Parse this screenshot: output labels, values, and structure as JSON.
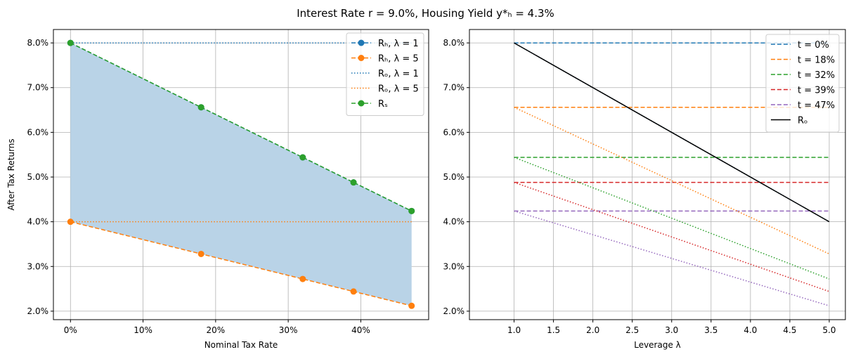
{
  "title": "Interest Rate r = 9.0%, Housing Yield y*ₕ = 4.3%",
  "chart_data": [
    {
      "type": "line",
      "xlabel": "Nominal Tax Rate",
      "ylabel": "After Tax Returns",
      "xlim": [
        -0.0235,
        0.4935
      ],
      "ylim": [
        1.81,
        8.3
      ],
      "xticks": [
        "0%",
        "10%",
        "20%",
        "30%",
        "40%"
      ],
      "xtick_values": [
        0,
        0.1,
        0.2,
        0.3,
        0.4
      ],
      "yticks": [
        "2.0%",
        "3.0%",
        "4.0%",
        "5.0%",
        "6.0%",
        "7.0%",
        "8.0%"
      ],
      "ytick_values": [
        2,
        3,
        4,
        5,
        6,
        7,
        8
      ],
      "grid": true,
      "legend_position": "top-right",
      "x": [
        0,
        0.18,
        0.32,
        0.39,
        0.47
      ],
      "fill_between": [
        "Rₕ, λ = 1",
        "Rₕ, λ = 5"
      ],
      "fill_color": "#b9d3e7",
      "series": [
        {
          "name": "Rₕ, λ = 1",
          "values": [
            8.0,
            6.56,
            5.44,
            4.88,
            4.24
          ],
          "color": "#1f77b4",
          "style": "dashed",
          "marker": true
        },
        {
          "name": "Rₕ, λ = 5",
          "values": [
            4.0,
            3.28,
            2.72,
            2.44,
            2.12
          ],
          "color": "#ff7f0e",
          "style": "dashed",
          "marker": true
        },
        {
          "name": "Rₒ, λ = 1",
          "values": [
            8.0,
            8.0,
            8.0,
            8.0,
            8.0
          ],
          "color": "#1f77b4",
          "style": "dotted",
          "marker": false
        },
        {
          "name": "Rₒ, λ = 5",
          "values": [
            4.0,
            4.0,
            4.0,
            4.0,
            4.0
          ],
          "color": "#ff7f0e",
          "style": "dotted",
          "marker": false
        },
        {
          "name": "Rₛ",
          "values": [
            8.0,
            6.56,
            5.44,
            4.88,
            4.24
          ],
          "color": "#2ca02c",
          "style": "dashed",
          "marker": true
        }
      ]
    },
    {
      "type": "line",
      "xlabel": "Leverage λ",
      "ylabel": "",
      "xlim": [
        0.433,
        5.205
      ],
      "ylim": [
        1.81,
        8.3
      ],
      "xticks": [
        "1.0",
        "1.5",
        "2.0",
        "2.5",
        "3.0",
        "3.5",
        "4.0",
        "4.5",
        "5.0"
      ],
      "xtick_values": [
        1,
        1.5,
        2,
        2.5,
        3,
        3.5,
        4,
        4.5,
        5
      ],
      "yticks": [
        "2.0%",
        "3.0%",
        "4.0%",
        "5.0%",
        "6.0%",
        "7.0%",
        "8.0%"
      ],
      "ytick_values": [
        2,
        3,
        4,
        5,
        6,
        7,
        8
      ],
      "grid": true,
      "legend_position": "top-right",
      "x": [
        1,
        5
      ],
      "series": [
        {
          "name": "t = 0%",
          "values": [
            8.0,
            8.0
          ],
          "color": "#1f77b4",
          "style": "dashed",
          "legend": true
        },
        {
          "name": "t = 18%",
          "values": [
            6.56,
            6.56
          ],
          "color": "#ff7f0e",
          "style": "dashed",
          "legend": true
        },
        {
          "name": "t = 32%",
          "values": [
            5.44,
            5.44
          ],
          "color": "#2ca02c",
          "style": "dashed",
          "legend": true
        },
        {
          "name": "t = 39%",
          "values": [
            4.88,
            4.88
          ],
          "color": "#d62728",
          "style": "dashed",
          "legend": true
        },
        {
          "name": "t = 47%",
          "values": [
            4.24,
            4.24
          ],
          "color": "#9467bd",
          "style": "dashed",
          "legend": true
        },
        {
          "values": [
            8.0,
            4.0
          ],
          "color": "#1f77b4",
          "style": "dotted",
          "legend": false
        },
        {
          "values": [
            6.56,
            3.28
          ],
          "color": "#ff7f0e",
          "style": "dotted",
          "legend": false
        },
        {
          "values": [
            5.44,
            2.72
          ],
          "color": "#2ca02c",
          "style": "dotted",
          "legend": false
        },
        {
          "values": [
            4.88,
            2.44
          ],
          "color": "#d62728",
          "style": "dotted",
          "legend": false
        },
        {
          "values": [
            4.24,
            2.12
          ],
          "color": "#9467bd",
          "style": "dotted",
          "legend": false
        },
        {
          "name": "Rₒ",
          "values": [
            8.0,
            4.0
          ],
          "color": "#000000",
          "style": "solid",
          "legend": true
        }
      ]
    }
  ]
}
